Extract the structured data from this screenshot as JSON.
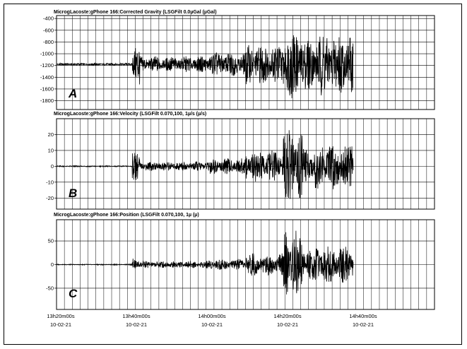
{
  "chart_data": [
    {
      "type": "line",
      "panel_label": "A",
      "title": "MicrogLacoste:gPhone 166:Corrected Gravity (LSGFilt 0.0µGal (µGal)",
      "ylim": [
        -1950,
        -350
      ],
      "yticks": [
        -400,
        -600,
        -800,
        -1000,
        -1200,
        -1400,
        -1600,
        -1800
      ],
      "ytick_labels": [
        "-400",
        "-600",
        "-800",
        "-1000",
        "-1200",
        "-1400",
        "-1600",
        "-1800"
      ],
      "baseline": -1180,
      "series": [
        {
          "segments": [
            {
              "t_from": 0,
              "t_to": 1200,
              "amp": 20
            },
            {
              "t_from": 1200,
              "t_to": 1320,
              "amp": 380
            },
            {
              "t_from": 1320,
              "t_to": 2400,
              "amp": 140
            },
            {
              "t_from": 2400,
              "t_to": 3000,
              "amp": 210
            },
            {
              "t_from": 3000,
              "t_to": 3600,
              "amp": 350
            },
            {
              "t_from": 3600,
              "t_to": 3900,
              "amp": 600
            },
            {
              "t_from": 3900,
              "t_to": 4100,
              "amp": 450
            },
            {
              "t_from": 4100,
              "t_to": 4710,
              "amp": 550
            }
          ]
        }
      ]
    },
    {
      "type": "line",
      "panel_label": "B",
      "title": "MicrogLacoste:gPhone 166:Velocity (LSGFilt 0.070,100, 1µ/s (µ/s)",
      "ylim": [
        -27,
        30
      ],
      "yticks": [
        20,
        10,
        0,
        -10,
        -20
      ],
      "ytick_labels": [
        "20",
        "10",
        "0",
        "-10",
        "-20"
      ],
      "baseline": 0,
      "series": [
        {
          "segments": [
            {
              "t_from": 0,
              "t_to": 1200,
              "amp": 0.4
            },
            {
              "t_from": 1200,
              "t_to": 1320,
              "amp": 9
            },
            {
              "t_from": 1320,
              "t_to": 2400,
              "amp": 3
            },
            {
              "t_from": 2400,
              "t_to": 3000,
              "amp": 5
            },
            {
              "t_from": 3000,
              "t_to": 3600,
              "amp": 10
            },
            {
              "t_from": 3600,
              "t_to": 3900,
              "amp": 24
            },
            {
              "t_from": 3900,
              "t_to": 4100,
              "amp": 12
            },
            {
              "t_from": 4100,
              "t_to": 4710,
              "amp": 15
            }
          ]
        }
      ]
    },
    {
      "type": "line",
      "panel_label": "C",
      "title": "MicrogLacoste:gPhone 166:Position (LSGFilt 0.070,100, 1µ (µ)",
      "ylim": [
        -95,
        95
      ],
      "yticks": [
        50,
        0,
        -50
      ],
      "ytick_labels": [
        "50",
        "0",
        "-50"
      ],
      "baseline": 0,
      "series": [
        {
          "segments": [
            {
              "t_from": 0,
              "t_to": 1200,
              "amp": 1
            },
            {
              "t_from": 1200,
              "t_to": 1320,
              "amp": 14
            },
            {
              "t_from": 1320,
              "t_to": 2400,
              "amp": 8
            },
            {
              "t_from": 2400,
              "t_to": 3000,
              "amp": 12
            },
            {
              "t_from": 3000,
              "t_to": 3600,
              "amp": 25
            },
            {
              "t_from": 3600,
              "t_to": 3900,
              "amp": 80
            },
            {
              "t_from": 3900,
              "t_to": 4100,
              "amp": 35
            },
            {
              "t_from": 4100,
              "t_to": 4710,
              "amp": 40
            }
          ]
        }
      ]
    }
  ],
  "x_axis": {
    "time_seconds_range": [
      0,
      4710
    ],
    "ticks": [
      {
        "t": 0,
        "time": "13h20m00s",
        "date": "10-02-21"
      },
      {
        "t": 1200,
        "time": "13h40m00s",
        "date": "10-02-21"
      },
      {
        "t": 2400,
        "time": "14h00m00s",
        "date": "10-02-21"
      },
      {
        "t": 3600,
        "time": "14h20m00s",
        "date": "10-02-21"
      },
      {
        "t": 4800,
        "time": "14h40m00s",
        "date": "10-02-21"
      }
    ]
  },
  "colors": {
    "trace": "#000000",
    "grid": "#000000",
    "background": "#ffffff"
  }
}
